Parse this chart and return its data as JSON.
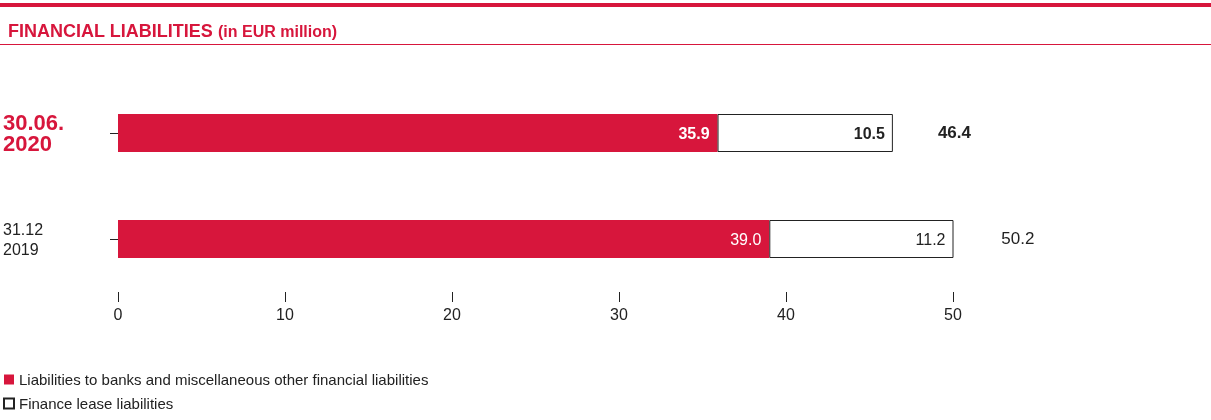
{
  "chart_data": {
    "type": "bar",
    "orientation": "horizontal",
    "stacked": true,
    "title": "FINANCIAL LIABILITIES",
    "subtitle": "(in EUR million)",
    "categories": [
      "30.06.\n2020",
      "31.12\n2019"
    ],
    "series": [
      {
        "name": "Liabilities to banks and miscellaneous other financial liabilities",
        "color": "#d7163c",
        "values": [
          35.9,
          39.0
        ],
        "value_labels": [
          "35.9",
          "39.0"
        ]
      },
      {
        "name": "Finance lease liabilities",
        "color": "#ffffff",
        "values": [
          10.5,
          11.2
        ],
        "value_labels": [
          "10.5",
          "11.2"
        ]
      }
    ],
    "totals": [
      "46.4",
      "50.2"
    ],
    "xlim": [
      0,
      50
    ],
    "xticks": [
      0,
      10,
      20,
      30,
      40,
      50
    ],
    "grid": false,
    "legend": "bottom left"
  }
}
